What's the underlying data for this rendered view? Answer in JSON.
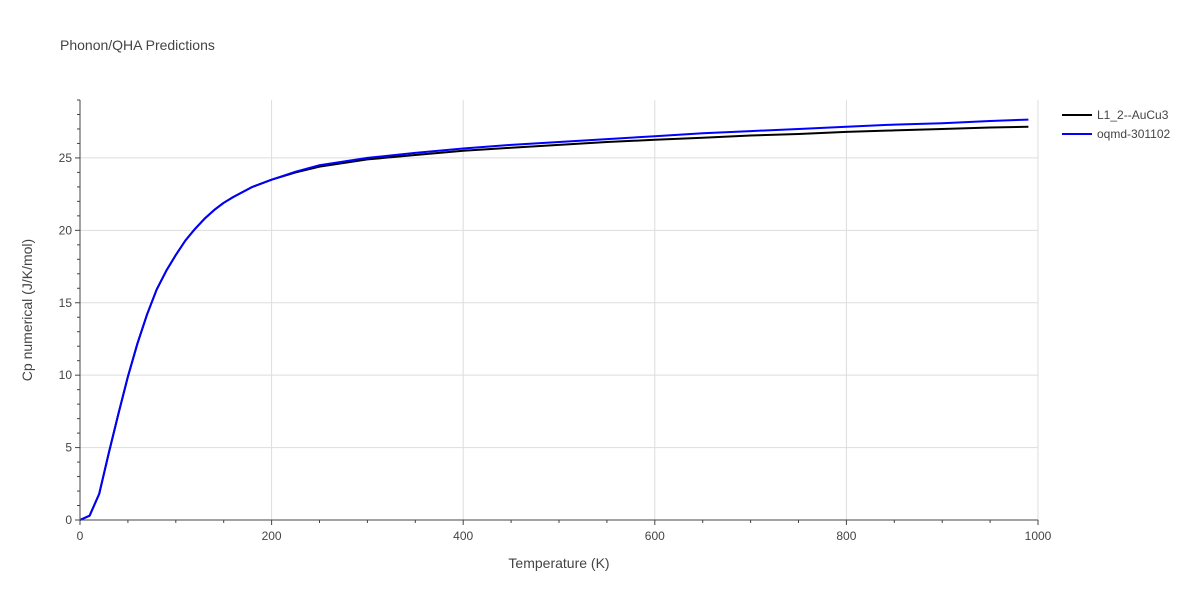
{
  "chart_data": {
    "type": "line",
    "title": "Phonon/QHA Predictions",
    "xlabel": "Temperature (K)",
    "ylabel": "Cp numerical (J/K/mol)",
    "xlim": [
      0,
      1000
    ],
    "ylim": [
      0,
      29
    ],
    "xticks": [
      0,
      200,
      400,
      600,
      800,
      1000
    ],
    "yticks": [
      0,
      5,
      10,
      15,
      20,
      25
    ],
    "grid": true,
    "legend_position": "top-right",
    "x": [
      0,
      10,
      20,
      30,
      40,
      50,
      60,
      70,
      80,
      90,
      100,
      110,
      120,
      130,
      140,
      150,
      160,
      180,
      200,
      225,
      250,
      300,
      350,
      400,
      450,
      500,
      550,
      600,
      650,
      700,
      750,
      800,
      850,
      900,
      950,
      990
    ],
    "series": [
      {
        "name": "L1_2--AuCu3",
        "color": "#000000",
        "values": [
          0,
          0.3,
          1.8,
          4.6,
          7.3,
          9.9,
          12.2,
          14.2,
          15.9,
          17.2,
          18.3,
          19.3,
          20.1,
          20.8,
          21.4,
          21.9,
          22.3,
          23.0,
          23.5,
          24.0,
          24.4,
          24.9,
          25.2,
          25.5,
          25.7,
          25.9,
          26.1,
          26.25,
          26.4,
          26.55,
          26.65,
          26.8,
          26.9,
          27.0,
          27.1,
          27.15
        ]
      },
      {
        "name": "oqmd-301102",
        "color": "#0000ff",
        "values": [
          0,
          0.3,
          1.8,
          4.6,
          7.3,
          9.9,
          12.2,
          14.2,
          15.9,
          17.2,
          18.3,
          19.3,
          20.1,
          20.8,
          21.4,
          21.9,
          22.3,
          23.0,
          23.5,
          24.05,
          24.5,
          25.0,
          25.35,
          25.65,
          25.9,
          26.1,
          26.3,
          26.5,
          26.7,
          26.85,
          27.0,
          27.15,
          27.3,
          27.4,
          27.55,
          27.65
        ]
      }
    ]
  }
}
